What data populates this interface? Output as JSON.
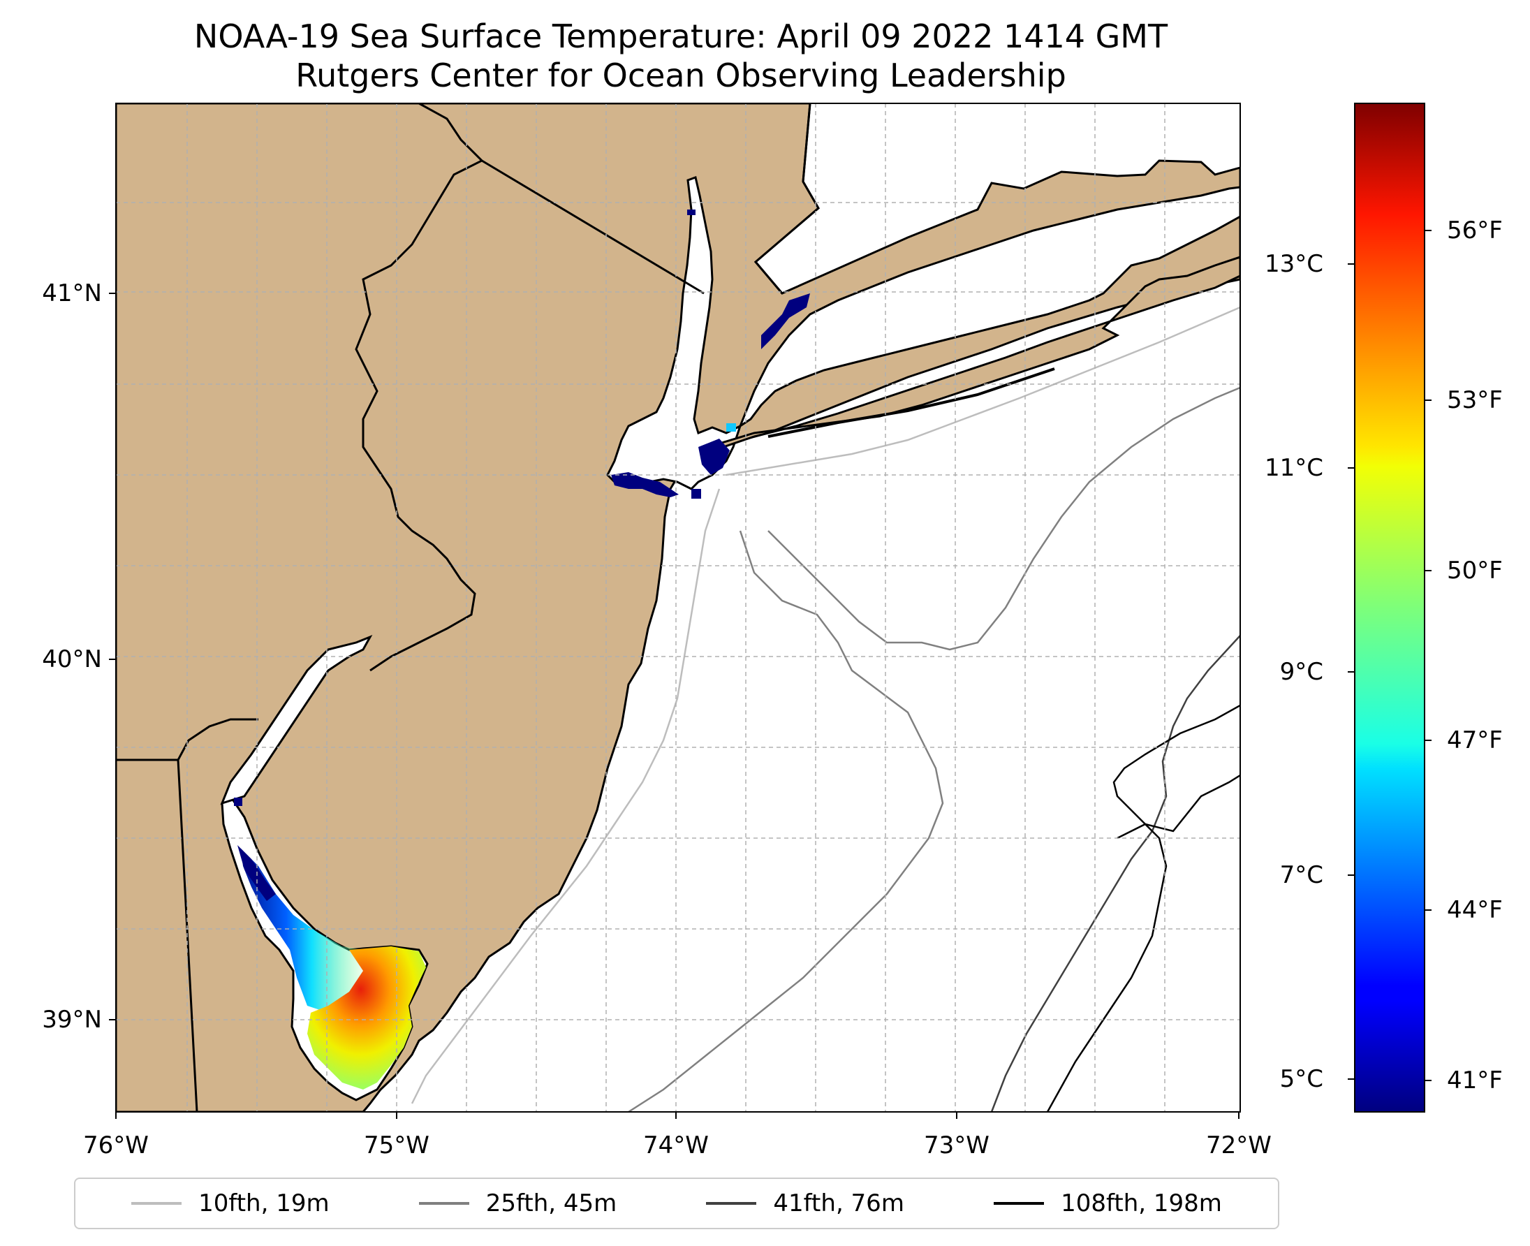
{
  "title": {
    "line1": "NOAA-19 Sea Surface Temperature: April 09 2022 1414 GMT",
    "line2": "Rutgers Center for Ocean Observing Leadership"
  },
  "map": {
    "extent": {
      "lon_min": -76.0,
      "lon_max": -72.0,
      "lat_min": 38.75,
      "lat_max": 41.52
    },
    "land_color": "#D2B48C",
    "ocean_color": "#FFFFFF",
    "gridlines": true,
    "lat_labels": [
      "41°N",
      "40°N",
      "39°N"
    ],
    "lon_labels": [
      "76°W",
      "75°W",
      "74°W",
      "73°W",
      "72°W"
    ]
  },
  "colorbar": {
    "colormap": "jet",
    "celsius_labels": [
      "13°C",
      "11°C",
      "9°C",
      "7°C",
      "5°C"
    ],
    "fahrenheit_labels": [
      "56°F",
      "53°F",
      "50°F",
      "47°F",
      "44°F",
      "41°F"
    ],
    "celsius_values": [
      13,
      11,
      9,
      7,
      5
    ],
    "fahrenheit_values": [
      56,
      53,
      50,
      47,
      44,
      41
    ],
    "range_f": [
      40.6,
      58.8
    ]
  },
  "legend": {
    "entries": [
      {
        "label": "10fth, 19m",
        "color": "#BDBDBD"
      },
      {
        "label": "25fth, 45m",
        "color": "#808080"
      },
      {
        "label": "41fth, 76m",
        "color": "#404040"
      },
      {
        "label": "108fth, 198m",
        "color": "#000000"
      }
    ]
  }
}
